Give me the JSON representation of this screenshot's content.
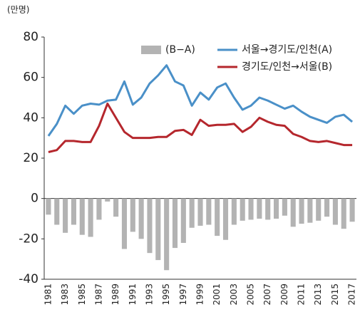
{
  "chart_data": {
    "type": "combo",
    "y_label": "(만명)",
    "categories": [
      "1981",
      null,
      "1983",
      null,
      "1985",
      null,
      "1987",
      null,
      "1989",
      null,
      "1991",
      null,
      "1993",
      null,
      "1995",
      null,
      "1997",
      null,
      "1999",
      null,
      "2001",
      null,
      "2003",
      null,
      "2005",
      null,
      "2007",
      null,
      "2009",
      null,
      "2011",
      null,
      "2013",
      null,
      "2015",
      null,
      "2017"
    ],
    "series": [
      {
        "name": "(B−A)",
        "type": "bar",
        "color": "#b3b3b3",
        "values": [
          -8,
          -13,
          -17,
          -13,
          -18,
          -19,
          -10.5,
          -1.5,
          -9,
          -25,
          -16.5,
          -20,
          -27,
          -30.5,
          -35.5,
          -24.5,
          -22,
          -14.5,
          -13.5,
          -13,
          -18.5,
          -20.5,
          -13,
          -11,
          -10.5,
          -10,
          -10.5,
          -10,
          -8.5,
          -14,
          -12.5,
          -12,
          -11,
          -9,
          -13,
          -15,
          -11.5
        ]
      },
      {
        "name": "서울→경기도/인천(A)",
        "type": "line",
        "color": "#4a90c8",
        "values": [
          31,
          37,
          46,
          42,
          46,
          47,
          46.5,
          48.5,
          49,
          58,
          46.5,
          50,
          57,
          61,
          66,
          58,
          56,
          46,
          52.5,
          49,
          55,
          57,
          50,
          44,
          46,
          50,
          48.5,
          46.5,
          44.5,
          46,
          43,
          40.5,
          39,
          37.5,
          40.5,
          41.5,
          38
        ]
      },
      {
        "name": "경기도/인천→서울(B)",
        "type": "line",
        "color": "#b5272d",
        "values": [
          23,
          24,
          28.5,
          28.5,
          28,
          28,
          36,
          47,
          40,
          33,
          30,
          30,
          30,
          30.5,
          30.5,
          33.5,
          34,
          31.5,
          39,
          36,
          36.5,
          36.5,
          37,
          33,
          35.5,
          40,
          38,
          36.5,
          36,
          32,
          30.5,
          28.5,
          28,
          28.5,
          27.5,
          26.5,
          26.5
        ]
      }
    ],
    "ylim": [
      -40,
      80
    ],
    "yticks": [
      -40,
      -20,
      0,
      20,
      40,
      60,
      80
    ]
  }
}
